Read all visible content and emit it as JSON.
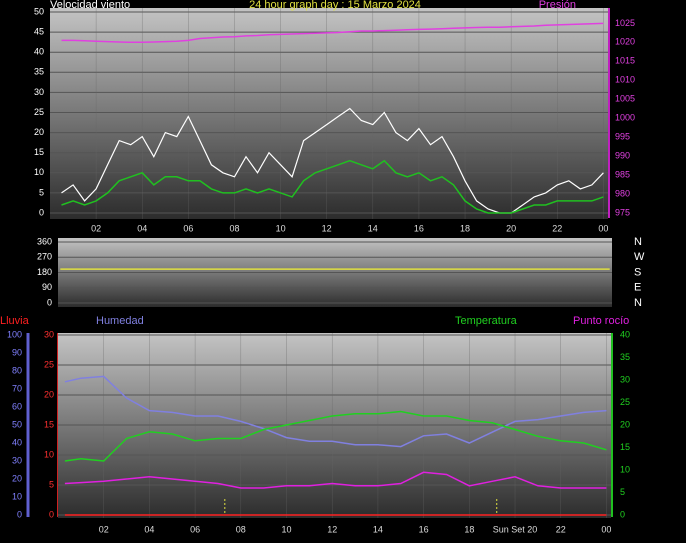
{
  "chart_data": [
    {
      "type": "line",
      "title": "24 hour graph day : 15 Marzo 2024",
      "ylabel": "Velocidad viento",
      "y2label": "Presión",
      "x": [
        0.5,
        1,
        1.5,
        2,
        2.5,
        3,
        3.5,
        4,
        4.5,
        5,
        5.5,
        6,
        6.5,
        7,
        7.5,
        8,
        8.5,
        9,
        9.5,
        10,
        10.5,
        11,
        11.5,
        12,
        12.5,
        13,
        13.5,
        14,
        14.5,
        15,
        15.5,
        16,
        16.5,
        17,
        17.5,
        18,
        18.5,
        19,
        19.5,
        20,
        20.5,
        21,
        21.5,
        22,
        22.5,
        23,
        23.5,
        24
      ],
      "series": [
        {
          "color": "#ffffff",
          "values": [
            5,
            7,
            3,
            6,
            12,
            18,
            17,
            19,
            14,
            20,
            19,
            24,
            18,
            12,
            10,
            9,
            14,
            10,
            15,
            12,
            9,
            18,
            20,
            22,
            24,
            26,
            23,
            22,
            25,
            20,
            18,
            21,
            17,
            19,
            14,
            8,
            3,
            1,
            0,
            0,
            2,
            4,
            5,
            7,
            8,
            6,
            7,
            10
          ]
        },
        {
          "color": "#20c020",
          "values": [
            2,
            3,
            2,
            3,
            5,
            8,
            9,
            10,
            7,
            9,
            9,
            8,
            8,
            6,
            5,
            5,
            6,
            5,
            6,
            5,
            4,
            8,
            10,
            11,
            12,
            13,
            12,
            11,
            13,
            10,
            9,
            10,
            8,
            9,
            7,
            3,
            1,
            0,
            0,
            0,
            1,
            2,
            2,
            3,
            3,
            3,
            3,
            4
          ]
        },
        {
          "color": "#e040e0",
          "axis": "y2",
          "values": [
            1020.5,
            1020.5,
            1020.4,
            1020.3,
            1020.2,
            1020.1,
            1020.0,
            1020.0,
            1020.1,
            1020.2,
            1020.3,
            1020.5,
            1021.0,
            1021.2,
            1021.4,
            1021.5,
            1021.7,
            1021.8,
            1022.0,
            1022.1,
            1022.2,
            1022.3,
            1022.4,
            1022.5,
            1022.6,
            1022.8,
            1023.0,
            1023.0,
            1023.1,
            1023.2,
            1023.3,
            1023.4,
            1023.5,
            1023.6,
            1023.7,
            1023.8,
            1023.9,
            1024.0,
            1024.0,
            1024.1,
            1024.2,
            1024.3,
            1024.5,
            1024.6,
            1024.7,
            1024.8,
            1024.9,
            1025.0
          ]
        }
      ],
      "xlim": [
        0,
        24.2
      ],
      "xticks": [
        {
          "value": 2,
          "label": "02"
        },
        {
          "value": 4,
          "label": "04"
        },
        {
          "value": 6,
          "label": "06"
        },
        {
          "value": 8,
          "label": "08"
        },
        10,
        12,
        14,
        16,
        18,
        20,
        22,
        {
          "value": 24,
          "label": "00"
        }
      ],
      "ylim": [
        0,
        50
      ],
      "yticks": [
        0,
        5,
        10,
        15,
        20,
        25,
        30,
        35,
        40,
        45,
        50
      ],
      "y2lim": [
        975,
        1028
      ],
      "y2ticks": [
        975,
        980,
        985,
        990,
        995,
        1000,
        1005,
        1010,
        1015,
        1020,
        1025
      ],
      "grid": true
    },
    {
      "type": "line",
      "x": [
        0.1,
        24.1
      ],
      "series": [
        {
          "color": "#e0e040",
          "values": [
            200,
            200
          ]
        }
      ],
      "xlim": [
        0,
        24.2
      ],
      "ylim": [
        0,
        360
      ],
      "yticks": [
        0,
        90,
        180,
        270,
        360
      ],
      "y2lim": [
        0,
        360
      ],
      "y2ticks": [
        {
          "value": 360,
          "label": "N"
        },
        {
          "value": 270,
          "label": "W"
        },
        {
          "value": 180,
          "label": "S"
        },
        {
          "value": 90,
          "label": "E"
        },
        {
          "value": 0,
          "label": "N"
        }
      ],
      "grid": true
    },
    {
      "type": "line",
      "x": [
        0.3,
        1,
        2,
        3,
        4,
        5,
        6,
        7,
        8,
        9,
        10,
        11,
        12,
        13,
        14,
        15,
        16,
        17,
        18,
        19,
        20,
        21,
        22,
        23,
        24
      ],
      "series": [
        {
          "name": "Lluvia",
          "color": "#ff2020",
          "values": [
            0,
            0,
            0,
            0,
            0,
            0,
            0,
            0,
            0,
            0,
            0,
            0,
            0,
            0,
            0,
            0,
            0,
            0,
            0,
            0,
            0,
            0,
            0,
            0,
            0
          ]
        },
        {
          "name": "Humedad",
          "color": "#8080e0",
          "axis": "y3",
          "values": [
            74,
            76,
            77,
            65,
            58,
            57,
            55,
            55,
            52,
            48,
            43,
            41,
            41,
            39,
            39,
            38,
            44,
            45,
            40,
            46,
            52,
            53,
            55,
            57,
            58
          ]
        },
        {
          "name": "Temperatura",
          "color": "#20d020",
          "axis": "y2",
          "values": [
            12,
            12.5,
            12,
            17,
            18.5,
            18,
            16.5,
            17,
            17,
            19,
            20,
            21,
            22,
            22.5,
            22.5,
            23,
            22,
            22,
            21,
            20.5,
            19,
            17.5,
            16.5,
            16,
            14.5
          ]
        },
        {
          "name": "Punto rocío",
          "color": "#e020e0",
          "axis": "y2",
          "values": [
            7,
            7.2,
            7.5,
            8,
            8.5,
            8,
            7.5,
            7,
            6,
            6,
            6.5,
            6.5,
            7,
            6.5,
            6.5,
            7,
            9.5,
            9,
            6.5,
            7.5,
            8.5,
            6.5,
            6,
            6,
            6
          ]
        }
      ],
      "sun_markers": [
        7.3,
        19.2
      ],
      "xlim": [
        0,
        24.2
      ],
      "xticks": [
        {
          "value": 2,
          "label": "02"
        },
        {
          "value": 4,
          "label": "04"
        },
        {
          "value": 6,
          "label": "06"
        },
        {
          "value": 8,
          "label": "08"
        },
        10,
        12,
        14,
        16,
        18,
        {
          "value": 20,
          "label": "Sun Set 20"
        },
        22,
        {
          "value": 24,
          "label": "00"
        }
      ],
      "ylim": [
        0,
        30
      ],
      "yticks": [
        0,
        5,
        10,
        15,
        20,
        25,
        30
      ],
      "y3lim": [
        0,
        100
      ],
      "y3ticks": [
        0,
        10,
        20,
        30,
        40,
        50,
        60,
        70,
        80,
        90,
        100
      ],
      "y2lim": [
        0,
        40
      ],
      "y2ticks": [
        0,
        5,
        10,
        15,
        20,
        25,
        30,
        35,
        40
      ],
      "grid": true
    }
  ]
}
